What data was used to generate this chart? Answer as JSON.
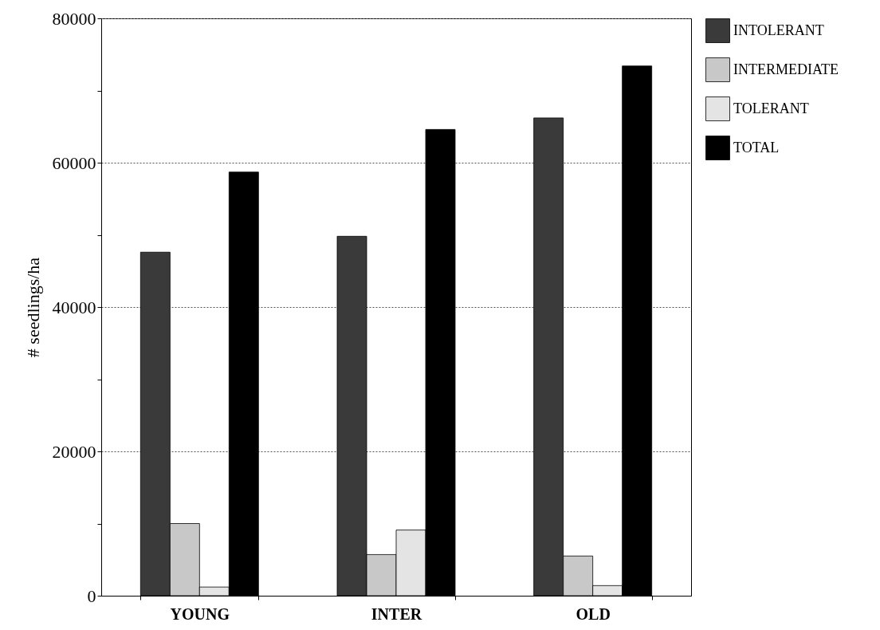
{
  "chart_data": {
    "type": "bar",
    "ylabel": "# seedlings/ha",
    "categories": [
      "YOUNG",
      "INTER",
      "OLD"
    ],
    "series": [
      {
        "name": "INTOLERANT",
        "color": "#3a3a3a",
        "values": [
          47600,
          49800,
          66200
        ]
      },
      {
        "name": "INTERMEDIATE",
        "color": "#c8c8c8",
        "values": [
          10000,
          5700,
          5500
        ]
      },
      {
        "name": "TOLERANT",
        "color": "#e4e4e4",
        "values": [
          1200,
          9100,
          1400
        ]
      },
      {
        "name": "TOTAL",
        "color": "#000000",
        "values": [
          58700,
          64600,
          73400
        ]
      }
    ],
    "ylim": [
      0,
      80000
    ],
    "yticks": [
      0,
      {
        "value": 10000,
        "label": null
      },
      20000,
      {
        "value": 30000,
        "label": null
      },
      40000,
      {
        "value": 50000,
        "label": null
      },
      60000,
      {
        "value": 70000,
        "label": null
      },
      80000
    ],
    "grid": "y",
    "legend": "right"
  }
}
